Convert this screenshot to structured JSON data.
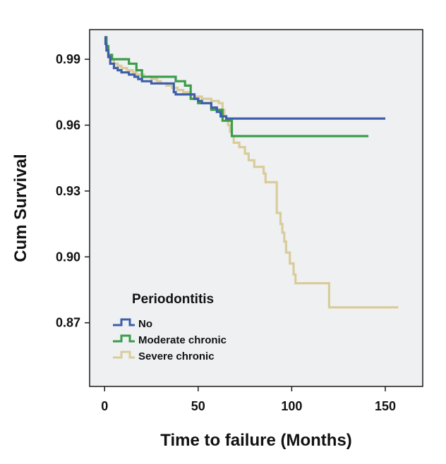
{
  "chart_data": {
    "type": "line",
    "step": true,
    "xlabel": "Time to failure (Months)",
    "ylabel": "Cum Survival",
    "xlim": [
      -8,
      170
    ],
    "ylim": [
      0.841,
      1.0035
    ],
    "xticks": [
      0,
      50,
      100,
      150
    ],
    "yticks": [
      0.99,
      0.96,
      0.93,
      0.9,
      0.87
    ],
    "ytick_labels": [
      "0.99",
      "0.96",
      "0.93",
      "0.90",
      "0.87"
    ],
    "grid": false,
    "background": "#eff0f2",
    "legend": {
      "title": "Periodontitis",
      "placement": "bottom-left",
      "items": [
        "No",
        "Moderate chronic",
        "Severe chronic"
      ]
    },
    "series": [
      {
        "name": "No",
        "color": "#3d5ea8",
        "points": [
          [
            0,
            1.0
          ],
          [
            0.5,
            0.997
          ],
          [
            1,
            0.994
          ],
          [
            2,
            0.991
          ],
          [
            3,
            0.988
          ],
          [
            5,
            0.986
          ],
          [
            7,
            0.985
          ],
          [
            9,
            0.984
          ],
          [
            13,
            0.983
          ],
          [
            16,
            0.982
          ],
          [
            18,
            0.981
          ],
          [
            20,
            0.98
          ],
          [
            25,
            0.979
          ],
          [
            37,
            0.979
          ],
          [
            37,
            0.975
          ],
          [
            38,
            0.974
          ],
          [
            48,
            0.972
          ],
          [
            50,
            0.971
          ],
          [
            52,
            0.97
          ],
          [
            57,
            0.968
          ],
          [
            60,
            0.966
          ],
          [
            62,
            0.964
          ],
          [
            65,
            0.963
          ],
          [
            150,
            0.963
          ]
        ]
      },
      {
        "name": "Moderate chronic",
        "color": "#3b9c4a",
        "points": [
          [
            0,
            1.0
          ],
          [
            1,
            0.996
          ],
          [
            2,
            0.992
          ],
          [
            4,
            0.99
          ],
          [
            13,
            0.99
          ],
          [
            13,
            0.988
          ],
          [
            17,
            0.988
          ],
          [
            17,
            0.985
          ],
          [
            20,
            0.985
          ],
          [
            20,
            0.982
          ],
          [
            38,
            0.982
          ],
          [
            38,
            0.98
          ],
          [
            43,
            0.98
          ],
          [
            43,
            0.978
          ],
          [
            46,
            0.978
          ],
          [
            46,
            0.972
          ],
          [
            50,
            0.972
          ],
          [
            50,
            0.97
          ],
          [
            57,
            0.97
          ],
          [
            57,
            0.967
          ],
          [
            63,
            0.967
          ],
          [
            63,
            0.962
          ],
          [
            68,
            0.962
          ],
          [
            68,
            0.955
          ],
          [
            141,
            0.955
          ]
        ]
      },
      {
        "name": "Severe chronic",
        "color": "#d9cc9b",
        "points": [
          [
            0,
            1.0
          ],
          [
            1,
            0.995
          ],
          [
            2,
            0.992
          ],
          [
            3,
            0.99
          ],
          [
            5,
            0.988
          ],
          [
            7,
            0.987
          ],
          [
            9,
            0.986
          ],
          [
            12,
            0.985
          ],
          [
            15,
            0.984
          ],
          [
            17,
            0.983
          ],
          [
            21,
            0.982
          ],
          [
            25,
            0.981
          ],
          [
            28,
            0.98
          ],
          [
            30,
            0.979
          ],
          [
            33,
            0.978
          ],
          [
            36,
            0.977
          ],
          [
            39,
            0.976
          ],
          [
            42,
            0.975
          ],
          [
            45,
            0.974
          ],
          [
            48,
            0.973
          ],
          [
            52,
            0.972
          ],
          [
            57,
            0.971
          ],
          [
            61,
            0.97
          ],
          [
            63,
            0.967
          ],
          [
            64,
            0.964
          ],
          [
            65,
            0.962
          ],
          [
            66,
            0.96
          ],
          [
            67,
            0.957
          ],
          [
            68,
            0.955
          ],
          [
            69,
            0.952
          ],
          [
            72,
            0.95
          ],
          [
            75,
            0.947
          ],
          [
            77,
            0.944
          ],
          [
            80,
            0.941
          ],
          [
            85,
            0.938
          ],
          [
            86,
            0.934
          ],
          [
            92,
            0.928
          ],
          [
            92,
            0.92
          ],
          [
            94,
            0.915
          ],
          [
            95,
            0.911
          ],
          [
            96,
            0.907
          ],
          [
            97,
            0.902
          ],
          [
            99,
            0.897
          ],
          [
            101,
            0.892
          ],
          [
            102,
            0.888
          ],
          [
            120,
            0.877
          ],
          [
            157,
            0.877
          ]
        ]
      }
    ]
  }
}
